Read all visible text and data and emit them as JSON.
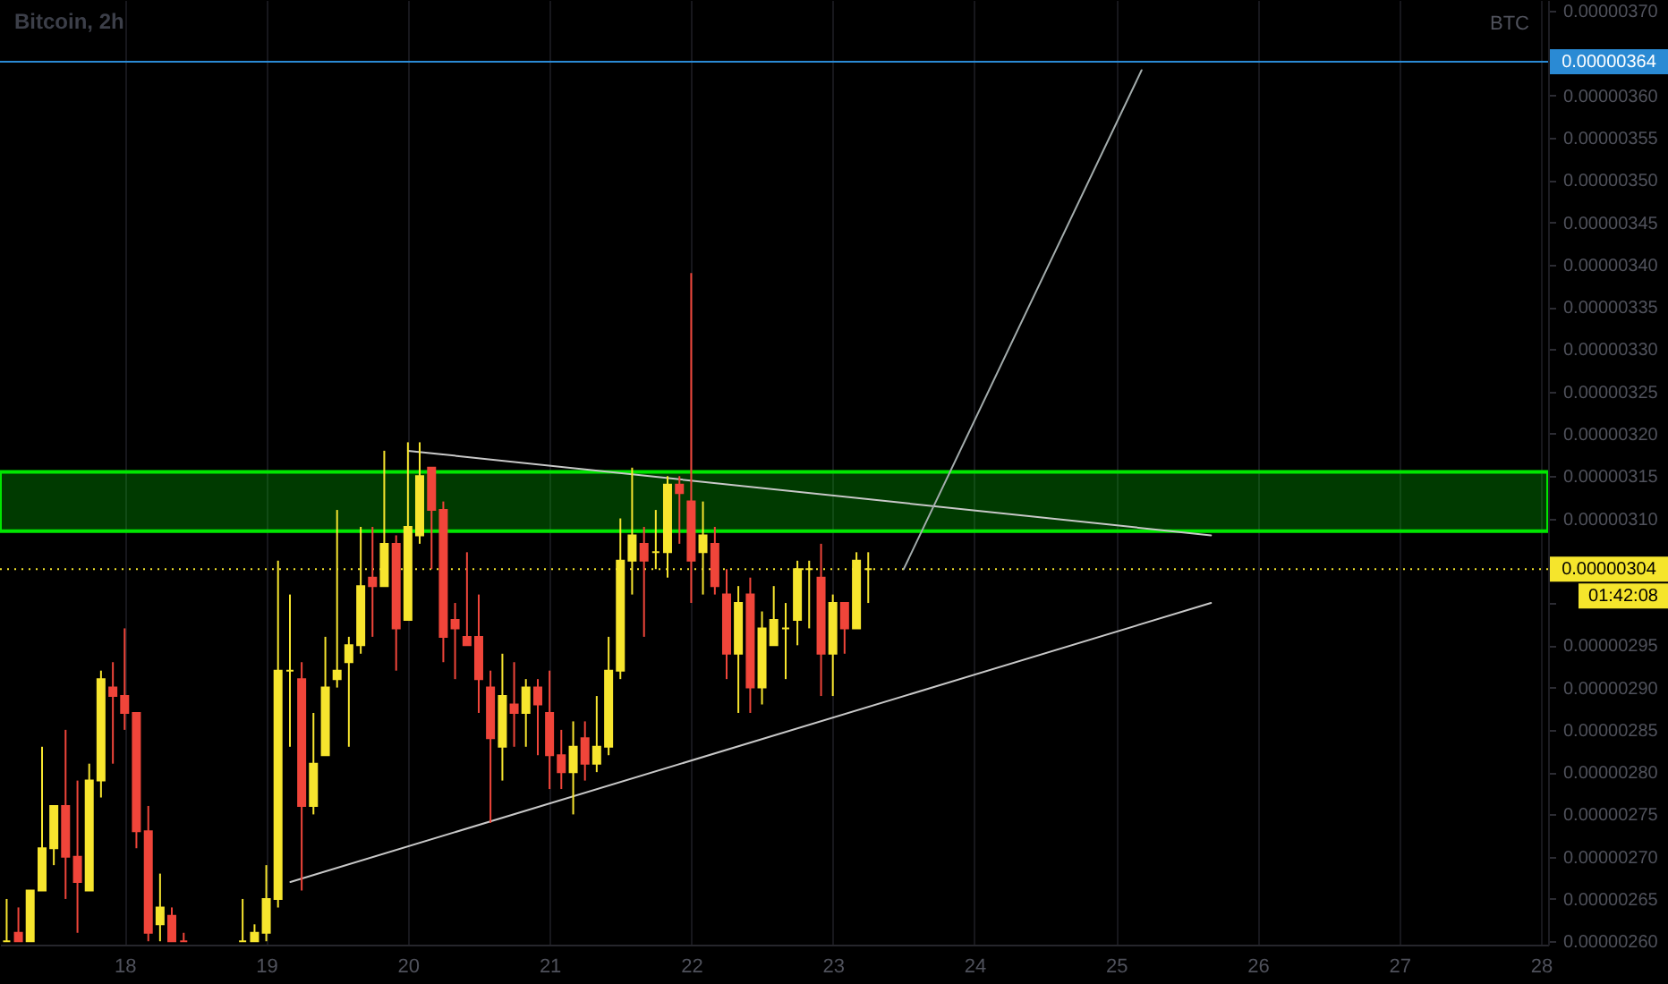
{
  "chart_data": {
    "type": "candlestick",
    "title": "Bitcoin, 2h",
    "ylabel": "BTC",
    "x": [
      17.167,
      17.25,
      17.333,
      17.417,
      17.5,
      17.583,
      17.667,
      17.75,
      17.833,
      17.917,
      18,
      18.083,
      18.167,
      18.25,
      18.333,
      18.417,
      18.833,
      18.917,
      19,
      19.083,
      19.167,
      19.25,
      19.333,
      19.417,
      19.5,
      19.583,
      19.667,
      19.75,
      19.833,
      19.917,
      20,
      20.083,
      20.167,
      20.25,
      20.333,
      20.417,
      20.5,
      20.583,
      20.667,
      20.75,
      20.833,
      20.917,
      21,
      21.083,
      21.167,
      21.25,
      21.333,
      21.417,
      21.5,
      21.583,
      21.667,
      21.75,
      21.833,
      21.917,
      22,
      22.083,
      22.167,
      22.25,
      22.333,
      22.417,
      22.5,
      22.583,
      22.667,
      22.75,
      22.833,
      22.917,
      23,
      23.083,
      23.167,
      23.25
    ],
    "ohlc": [
      [
        2.6e-06,
        2.65e-06,
        2.6e-06,
        2.6e-06
      ],
      [
        2.61e-06,
        2.64e-06,
        2.6e-06,
        2.6e-06
      ],
      [
        2.6e-06,
        2.66e-06,
        2.6e-06,
        2.66e-06
      ],
      [
        2.66e-06,
        2.83e-06,
        2.66e-06,
        2.71e-06
      ],
      [
        2.71e-06,
        2.76e-06,
        2.69e-06,
        2.76e-06
      ],
      [
        2.76e-06,
        2.85e-06,
        2.65e-06,
        2.7e-06
      ],
      [
        2.7e-06,
        2.79e-06,
        2.61e-06,
        2.67e-06
      ],
      [
        2.66e-06,
        2.81e-06,
        2.66e-06,
        2.79e-06
      ],
      [
        2.79e-06,
        2.92e-06,
        2.77e-06,
        2.91e-06
      ],
      [
        2.9e-06,
        2.93e-06,
        2.81e-06,
        2.89e-06
      ],
      [
        2.89e-06,
        2.97e-06,
        2.85e-06,
        2.87e-06
      ],
      [
        2.87e-06,
        2.87e-06,
        2.71e-06,
        2.73e-06
      ],
      [
        2.73e-06,
        2.76e-06,
        2.6e-06,
        2.61e-06
      ],
      [
        2.62e-06,
        2.68e-06,
        2.6e-06,
        2.64e-06
      ],
      [
        2.63e-06,
        2.64e-06,
        2.6e-06,
        2.6e-06
      ],
      [
        2.6e-06,
        2.61e-06,
        2.6e-06,
        2.6e-06
      ],
      [
        2.6e-06,
        2.65e-06,
        2.6e-06,
        2.6e-06
      ],
      [
        2.6e-06,
        2.62e-06,
        2.6e-06,
        2.61e-06
      ],
      [
        2.61e-06,
        2.69e-06,
        2.6e-06,
        2.65e-06
      ],
      [
        2.65e-06,
        3.05e-06,
        2.64e-06,
        2.92e-06
      ],
      [
        2.92e-06,
        3.01e-06,
        2.83e-06,
        2.92e-06
      ],
      [
        2.91e-06,
        2.93e-06,
        2.66e-06,
        2.76e-06
      ],
      [
        2.76e-06,
        2.87e-06,
        2.75e-06,
        2.81e-06
      ],
      [
        2.82e-06,
        2.96e-06,
        2.82e-06,
        2.9e-06
      ],
      [
        2.91e-06,
        3.11e-06,
        2.9e-06,
        2.92e-06
      ],
      [
        2.93e-06,
        2.96e-06,
        2.83e-06,
        2.95e-06
      ],
      [
        2.95e-06,
        3.09e-06,
        2.94e-06,
        3.02e-06
      ],
      [
        3.03e-06,
        3.09e-06,
        2.96e-06,
        3.02e-06
      ],
      [
        3.02e-06,
        3.18e-06,
        3.02e-06,
        3.07e-06
      ],
      [
        3.07e-06,
        3.08e-06,
        2.92e-06,
        2.97e-06
      ],
      [
        2.98e-06,
        3.19e-06,
        2.98e-06,
        3.09e-06
      ],
      [
        3.08e-06,
        3.19e-06,
        3.07e-06,
        3.15e-06
      ],
      [
        3.16e-06,
        3.16e-06,
        3.04e-06,
        3.11e-06
      ],
      [
        3.11e-06,
        3.12e-06,
        2.93e-06,
        2.96e-06
      ],
      [
        2.98e-06,
        3e-06,
        2.91e-06,
        2.97e-06
      ],
      [
        2.96e-06,
        3.06e-06,
        2.95e-06,
        2.95e-06
      ],
      [
        2.96e-06,
        3.01e-06,
        2.87e-06,
        2.91e-06
      ],
      [
        2.9e-06,
        2.92e-06,
        2.74e-06,
        2.84e-06
      ],
      [
        2.83e-06,
        2.94e-06,
        2.79e-06,
        2.89e-06
      ],
      [
        2.88e-06,
        2.93e-06,
        2.83e-06,
        2.87e-06
      ],
      [
        2.87e-06,
        2.91e-06,
        2.83e-06,
        2.9e-06
      ],
      [
        2.9e-06,
        2.91e-06,
        2.82e-06,
        2.88e-06
      ],
      [
        2.87e-06,
        2.92e-06,
        2.78e-06,
        2.82e-06
      ],
      [
        2.82e-06,
        2.85e-06,
        2.78e-06,
        2.8e-06
      ],
      [
        2.8e-06,
        2.86e-06,
        2.75e-06,
        2.83e-06
      ],
      [
        2.84e-06,
        2.86e-06,
        2.79e-06,
        2.81e-06
      ],
      [
        2.81e-06,
        2.89e-06,
        2.8e-06,
        2.83e-06
      ],
      [
        2.83e-06,
        2.96e-06,
        2.82e-06,
        2.92e-06
      ],
      [
        2.92e-06,
        3.1e-06,
        2.91e-06,
        3.05e-06
      ],
      [
        3.05e-06,
        3.16e-06,
        3.01e-06,
        3.08e-06
      ],
      [
        3.07e-06,
        3.09e-06,
        2.96e-06,
        3.05e-06
      ],
      [
        3.06e-06,
        3.11e-06,
        3.04e-06,
        3.06e-06
      ],
      [
        3.06e-06,
        3.15e-06,
        3.03e-06,
        3.14e-06
      ],
      [
        3.14e-06,
        3.15e-06,
        3.07e-06,
        3.13e-06
      ],
      [
        3.12e-06,
        3.39e-06,
        3e-06,
        3.05e-06
      ],
      [
        3.06e-06,
        3.12e-06,
        3.01e-06,
        3.08e-06
      ],
      [
        3.07e-06,
        3.09e-06,
        3.01e-06,
        3.02e-06
      ],
      [
        3.01e-06,
        3.04e-06,
        2.91e-06,
        2.94e-06
      ],
      [
        2.94e-06,
        3.02e-06,
        2.87e-06,
        3e-06
      ],
      [
        3.01e-06,
        3.03e-06,
        2.87e-06,
        2.9e-06
      ],
      [
        2.9e-06,
        2.99e-06,
        2.88e-06,
        2.97e-06
      ],
      [
        2.95e-06,
        3.02e-06,
        2.95e-06,
        2.98e-06
      ],
      [
        2.97e-06,
        3e-06,
        2.91e-06,
        2.97e-06
      ],
      [
        2.98e-06,
        3.05e-06,
        2.95e-06,
        3.04e-06
      ],
      [
        3.04e-06,
        3.05e-06,
        2.97e-06,
        3.04e-06
      ],
      [
        3.03e-06,
        3.07e-06,
        2.89e-06,
        2.94e-06
      ],
      [
        2.94e-06,
        3.01e-06,
        2.89e-06,
        3e-06
      ],
      [
        3e-06,
        3e-06,
        2.94e-06,
        2.97e-06
      ],
      [
        2.97e-06,
        3.06e-06,
        2.97e-06,
        3.05e-06
      ],
      [
        3.04e-06,
        3.06e-06,
        3e-06,
        3.04e-06
      ]
    ],
    "colors": [
      "#f7e52e",
      "#f0453a",
      "#f7e52e",
      "#f7e52e",
      "#f7e52e",
      "#f0453a",
      "#f0453a",
      "#f7e52e",
      "#f7e52e",
      "#f0453a",
      "#f0453a",
      "#f0453a",
      "#f0453a",
      "#f7e52e",
      "#f0453a",
      "#f0453a",
      "#f7e52e",
      "#f7e52e",
      "#f7e52e",
      "#f7e52e",
      "#f7e52e",
      "#f0453a",
      "#f7e52e",
      "#f7e52e",
      "#f7e52e",
      "#f7e52e",
      "#f7e52e",
      "#f0453a",
      "#f7e52e",
      "#f0453a",
      "#f7e52e",
      "#f7e52e",
      "#f0453a",
      "#f0453a",
      "#f0453a",
      "#f0453a",
      "#f0453a",
      "#f0453a",
      "#f7e52e",
      "#f0453a",
      "#f7e52e",
      "#f0453a",
      "#f0453a",
      "#f0453a",
      "#f7e52e",
      "#f0453a",
      "#f7e52e",
      "#f7e52e",
      "#f7e52e",
      "#f7e52e",
      "#f0453a",
      "#f7e52e",
      "#f7e52e",
      "#f0453a",
      "#f0453a",
      "#f7e52e",
      "#f0453a",
      "#f0453a",
      "#f7e52e",
      "#f0453a",
      "#f7e52e",
      "#f7e52e",
      "#f7e52e",
      "#f7e52e",
      "#f7e52e",
      "#f0453a",
      "#f7e52e",
      "#f0453a",
      "#f7e52e",
      "#f7e52e"
    ],
    "series": [
      {
        "type": "line",
        "x": [
          20,
          25.67
        ],
        "values": [
          3.18e-06,
          3.08e-06
        ],
        "color": "#c8c8c8"
      },
      {
        "type": "line",
        "x": [
          19.17,
          25.67
        ],
        "values": [
          2.67e-06,
          3e-06
        ],
        "color": "#c8c8c8"
      },
      {
        "type": "line",
        "x": [
          23.5,
          25.18
        ],
        "values": [
          3.04e-06,
          3.63e-06
        ],
        "color": "#a3acac"
      }
    ],
    "bands": [
      {
        "axis": "y",
        "from": 3.085e-06,
        "to": 3.155e-06,
        "color": "#00e600"
      }
    ],
    "ref_lines": [
      {
        "axis": "y",
        "value": 3.64e-06,
        "label": "0.00000364",
        "color": "#2a8ad4"
      },
      {
        "axis": "y",
        "value": 3.04e-06,
        "label": "0.00000304",
        "color": "#f5e52c",
        "line_style": "dotted"
      }
    ],
    "annotations": [
      "01:42:08"
    ],
    "xlim": [
      17.12,
      28.05
    ],
    "xticks": [
      18,
      19,
      20,
      21,
      22,
      23,
      24,
      25,
      26,
      27,
      28
    ],
    "ylim": [
      2.596e-06,
      3.713e-06
    ],
    "yticks": [
      {
        "value": 2.6e-06,
        "label": "0.00000260"
      },
      {
        "value": 2.65e-06,
        "label": "0.00000265"
      },
      {
        "value": 2.7e-06,
        "label": "0.00000270"
      },
      {
        "value": 2.75e-06,
        "label": "0.00000275"
      },
      {
        "value": 2.8e-06,
        "label": "0.00000280"
      },
      {
        "value": 2.85e-06,
        "label": "0.00000285"
      },
      {
        "value": 2.9e-06,
        "label": "0.00000290"
      },
      {
        "value": 2.95e-06,
        "label": "0.00000295"
      },
      {
        "value": 3e-06,
        "label": null
      },
      {
        "value": 3.1e-06,
        "label": "0.00000310"
      },
      {
        "value": 3.15e-06,
        "label": "0.00000315"
      },
      {
        "value": 3.2e-06,
        "label": "0.00000320"
      },
      {
        "value": 3.25e-06,
        "label": "0.00000325"
      },
      {
        "value": 3.3e-06,
        "label": "0.00000330"
      },
      {
        "value": 3.35e-06,
        "label": "0.00000335"
      },
      {
        "value": 3.4e-06,
        "label": "0.00000340"
      },
      {
        "value": 3.45e-06,
        "label": "0.00000345"
      },
      {
        "value": 3.5e-06,
        "label": "0.00000350"
      },
      {
        "value": 3.55e-06,
        "label": "0.00000355"
      },
      {
        "value": 3.6e-06,
        "label": "0.00000360"
      },
      {
        "value": 3.7e-06,
        "label": "0.00000370"
      }
    ],
    "grid": "x"
  }
}
